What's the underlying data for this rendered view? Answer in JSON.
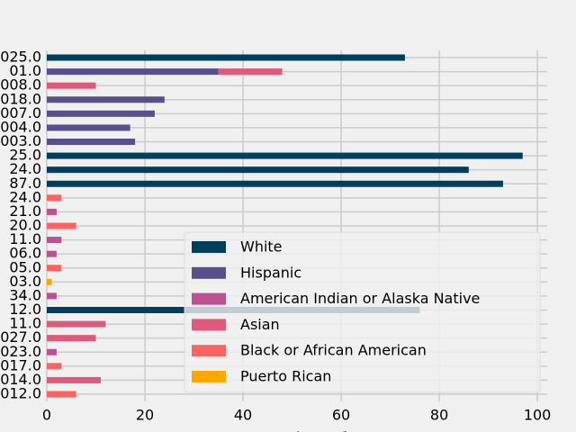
{
  "chart_data": {
    "type": "stacked-barh",
    "categories": [
      "025.0",
      "01.0",
      "008.0",
      "018.0",
      "007.0",
      "004.0",
      "003.0",
      "25.0",
      "24.0",
      "87.0",
      "24.0",
      "21.0",
      "20.0",
      "11.0",
      "06.0",
      "05.0",
      "03.0",
      "34.0",
      "12.0",
      "11.0",
      "027.0",
      "023.0",
      "017.0",
      "014.0",
      "012.0"
    ],
    "series": [
      {
        "name": "White",
        "color": "#003f5c",
        "values": [
          73,
          null,
          null,
          null,
          null,
          null,
          null,
          97,
          86,
          93,
          null,
          null,
          null,
          null,
          null,
          null,
          null,
          null,
          76,
          null,
          null,
          null,
          null,
          null,
          null
        ]
      },
      {
        "name": "Hispanic",
        "color": "#58508d",
        "values": [
          null,
          35,
          null,
          24,
          22,
          17,
          18,
          null,
          null,
          null,
          null,
          null,
          null,
          null,
          null,
          null,
          null,
          null,
          null,
          null,
          null,
          null,
          null,
          null,
          null
        ]
      },
      {
        "name": "American Indian or Alaska Native",
        "color": "#bc5090",
        "values": [
          null,
          null,
          null,
          null,
          null,
          null,
          null,
          null,
          null,
          null,
          null,
          2,
          null,
          3,
          2,
          null,
          null,
          2,
          null,
          null,
          null,
          2,
          null,
          null,
          null
        ]
      },
      {
        "name": "Asian",
        "color": "#de5a7c",
        "values": [
          null,
          13,
          10,
          null,
          null,
          null,
          null,
          null,
          null,
          null,
          null,
          null,
          null,
          null,
          null,
          null,
          null,
          null,
          null,
          12,
          10,
          null,
          null,
          11,
          null
        ]
      },
      {
        "name": "Black or African American",
        "color": "#ff6361",
        "values": [
          null,
          null,
          null,
          null,
          null,
          null,
          null,
          null,
          null,
          null,
          3,
          null,
          6,
          null,
          null,
          3,
          null,
          null,
          null,
          null,
          null,
          null,
          3,
          null,
          6
        ]
      },
      {
        "name": "Puerto Rican",
        "color": "#ffa600",
        "values": [
          null,
          null,
          null,
          null,
          null,
          null,
          null,
          null,
          null,
          null,
          null,
          null,
          null,
          null,
          null,
          null,
          1,
          null,
          null,
          null,
          null,
          null,
          null,
          null,
          null
        ]
      }
    ],
    "xlabel": "Number of I",
    "xlim": [
      0,
      102
    ],
    "xticks": [
      0,
      20,
      40,
      60,
      80,
      100
    ],
    "grid": true,
    "legend": "lower right"
  }
}
